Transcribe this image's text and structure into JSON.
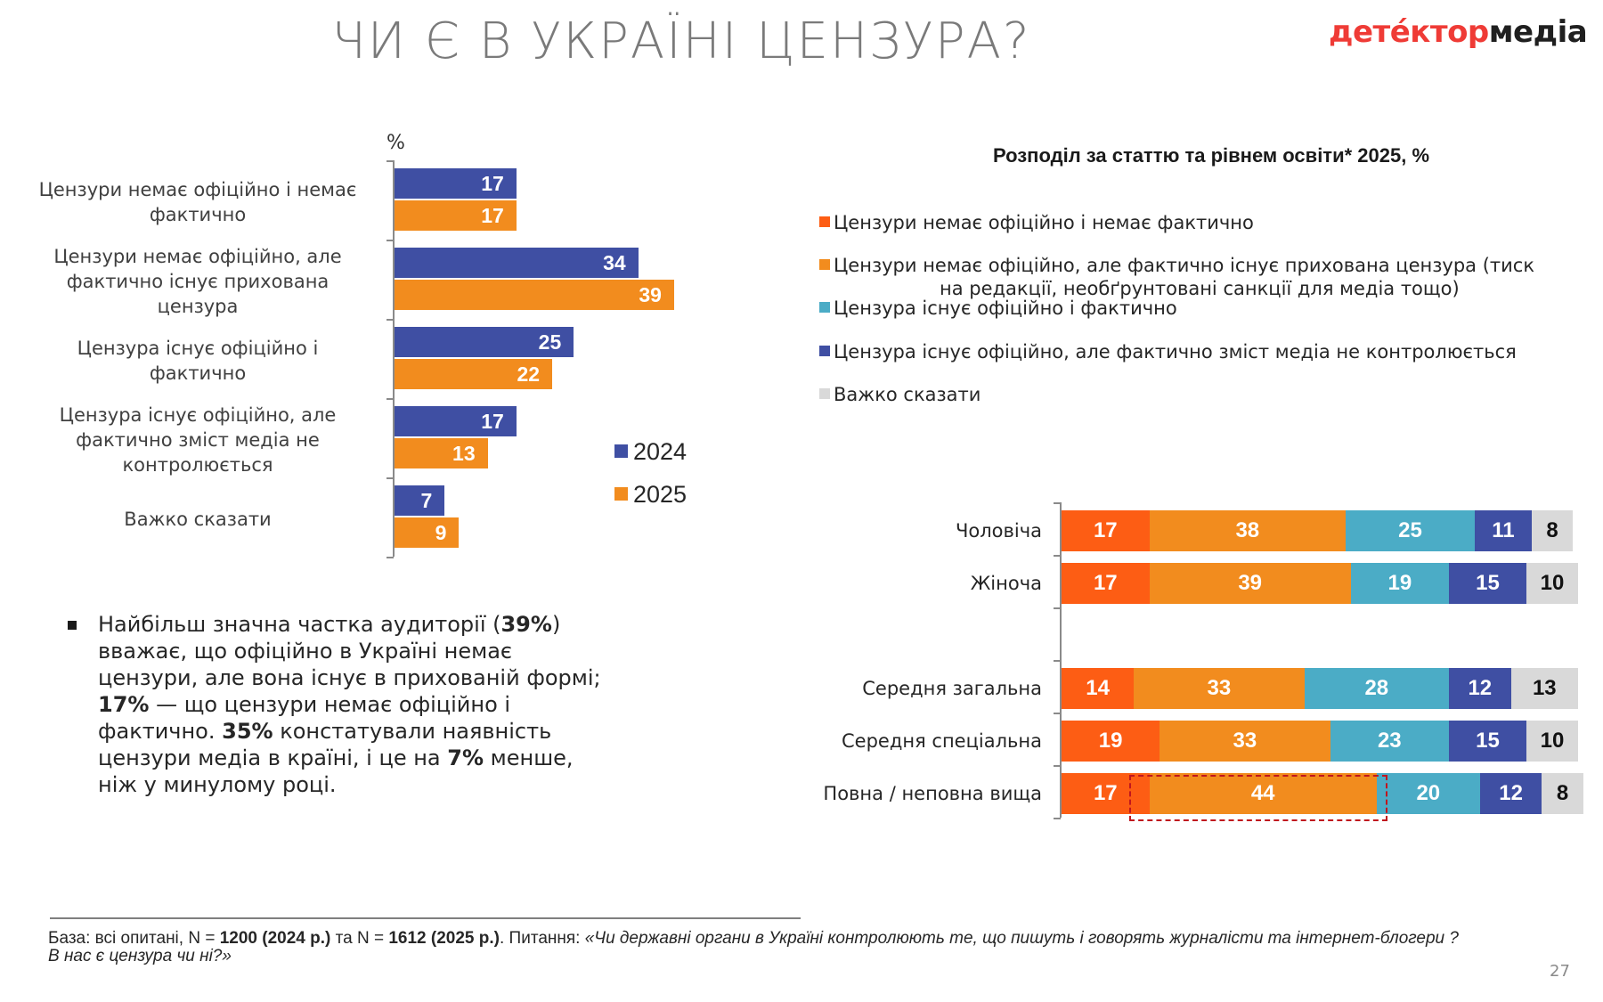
{
  "header": {
    "title": "ЧИ Є В УКРАЇНІ ЦЕНЗУРА?",
    "logo_part1": "детéктор",
    "logo_part2": "медіа"
  },
  "colors": {
    "year_2024": "#3f4fa3",
    "year_2025": "#f28c1e",
    "no_censorship": "#fd5d14",
    "hidden_censorship": "#f28c1e",
    "official_and_actual": "#4bacc6",
    "official_not_controlled": "#3f4fa3",
    "hard_to_say": "#d9d9d9",
    "highlight_border": "#c0161e",
    "logo_red": "#ef3b36"
  },
  "chart_data": [
    {
      "type": "bar",
      "orientation": "horizontal",
      "unit_label": "%",
      "categories": [
        "Цензури немає офіційно і немає фактично",
        "Цензури немає офіційно, але фактично існує прихована цензура",
        "Цензура існує офіційно і фактично",
        "Цензура існує офіційно, але фактично зміст медіа не контролюється",
        "Важко сказати"
      ],
      "category_lines": [
        [
          "Цензури немає офіційно і немає",
          "фактично"
        ],
        [
          "Цензури немає офіційно, але",
          "фактично існує прихована",
          "цензура"
        ],
        [
          "Цензура існує офіційно і",
          "фактично"
        ],
        [
          "Цензура існує офіційно, але",
          "фактично зміст медіа не",
          "контролюється"
        ],
        [
          "Важко сказати"
        ]
      ],
      "series": [
        {
          "name": "2024",
          "values": [
            17,
            34,
            25,
            17,
            7
          ]
        },
        {
          "name": "2025",
          "values": [
            17,
            39,
            22,
            13,
            9
          ]
        }
      ],
      "xlim": [
        0,
        45
      ],
      "legend": "right",
      "grid": false
    },
    {
      "type": "bar",
      "orientation": "horizontal-stacked",
      "title": "Розподіл за статтю та рівнем освіти* 2025, %",
      "categories": [
        "Чоловіча",
        "Жіноча",
        "",
        "Середня загальна",
        "Середня спеціальна",
        "Повна / неповна вища"
      ],
      "series": [
        {
          "name": "Цензури немає офіційно і немає фактично",
          "values": [
            17,
            17,
            null,
            14,
            19,
            17
          ]
        },
        {
          "name": "Цензури немає офіційно, але фактично існує прихована цензура (тиск на редакції, необґрунтовані санкції для медіа тощо)",
          "values": [
            38,
            39,
            null,
            33,
            33,
            44
          ]
        },
        {
          "name": "Цензура існує офіційно і фактично",
          "values": [
            25,
            19,
            null,
            28,
            23,
            20
          ]
        },
        {
          "name": "Цензура існує офіційно, але фактично зміст медіа не контролюється",
          "values": [
            11,
            15,
            null,
            12,
            15,
            12
          ]
        },
        {
          "name": "Важко сказати",
          "values": [
            8,
            10,
            null,
            13,
            10,
            8
          ]
        }
      ],
      "legend": "top",
      "highlight": {
        "category": "Повна / неповна вища",
        "series": "Цензури немає офіційно, але фактично існує прихована цензура (тиск на редакції, необґрунтовані санкції для медіа тощо)",
        "style": "red dashed box"
      },
      "xlim": [
        0,
        100
      ]
    }
  ],
  "right_legend": [
    {
      "line1": "Цензури немає офіційно і немає фактично"
    },
    {
      "line1": "Цензури немає офіційно, але фактично існує прихована цензура (тиск",
      "line2": "на редакції, необґрунтовані санкції для медіа тощо)"
    },
    {
      "line1": "Цензура існує офіційно і фактично"
    },
    {
      "line1": "Цензура існує офіційно, але фактично зміст медіа не контролюється"
    },
    {
      "line1": "Важко сказати"
    }
  ],
  "bullet": {
    "parts": [
      {
        "t": "Найбільш значна частка аудиторії (",
        "b": false
      },
      {
        "t": "39%",
        "b": true
      },
      {
        "t": ") вважає, що офіційно в Україні немає цензури, але вона існує в прихованій формі; ",
        "b": false
      },
      {
        "t": "17%",
        "b": true
      },
      {
        "t": " — що цензури немає офіційно і фактично. ",
        "b": false
      },
      {
        "t": "35%",
        "b": true
      },
      {
        "t": " констатували наявність цензури медіа в країні, і це на ",
        "b": false
      },
      {
        "t": "7%",
        "b": true
      },
      {
        "t": " менше, ніж у минулому році.",
        "b": false
      }
    ]
  },
  "footer": {
    "base_prefix": "База: всі опитані, N = ",
    "n2024": "1200 (2024 р.)",
    "mid": " та N = ",
    "n2025": "1612 (2025 р.)",
    "question_label": ". Питання: ",
    "question": "«Чи державні органи в Україні контролюють те, що пишуть і говорять журналісти та інтернет-блогери ? В нас є цензура чи ні?»"
  },
  "page_number": "27"
}
